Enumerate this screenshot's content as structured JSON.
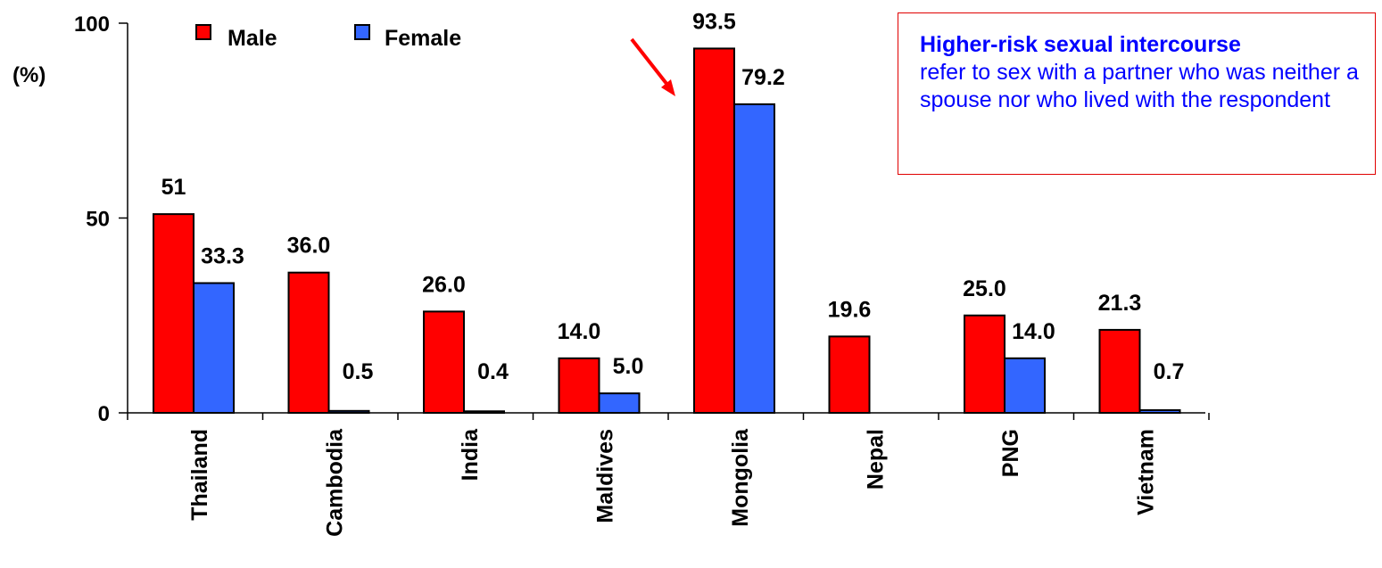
{
  "chart_data": {
    "type": "bar",
    "categories": [
      "Thailand",
      "Cambodia",
      "India",
      "Maldives",
      "Mongolia",
      "Nepal",
      "PNG",
      "Vietnam"
    ],
    "series": [
      {
        "name": "Male",
        "color": "#ff0000",
        "values": [
          51,
          36.0,
          26.0,
          14.0,
          93.5,
          19.6,
          25.0,
          21.3
        ],
        "labels": [
          "51",
          "36.0",
          "26.0",
          "14.0",
          "93.5",
          "19.6",
          "25.0",
          "21.3"
        ]
      },
      {
        "name": "Female",
        "color": "#3366ff",
        "values": [
          33.3,
          0.5,
          0.4,
          5.0,
          79.2,
          null,
          14.0,
          0.7
        ],
        "labels": [
          "33.3",
          "0.5",
          "0.4",
          "5.0",
          "79.2",
          "",
          "14.0",
          "0.7"
        ]
      }
    ],
    "yticks": [
      0,
      50,
      100
    ],
    "ylim": [
      0,
      100
    ],
    "ylabel": "(%)",
    "legend_position": "top-left",
    "highlight_category": "Mongolia",
    "arrow_color": "#ff0000"
  },
  "note": {
    "title": "Higher-risk sexual intercourse",
    "body": "refer to sex with a partner who was neither a spouse nor who lived with the respondent"
  }
}
